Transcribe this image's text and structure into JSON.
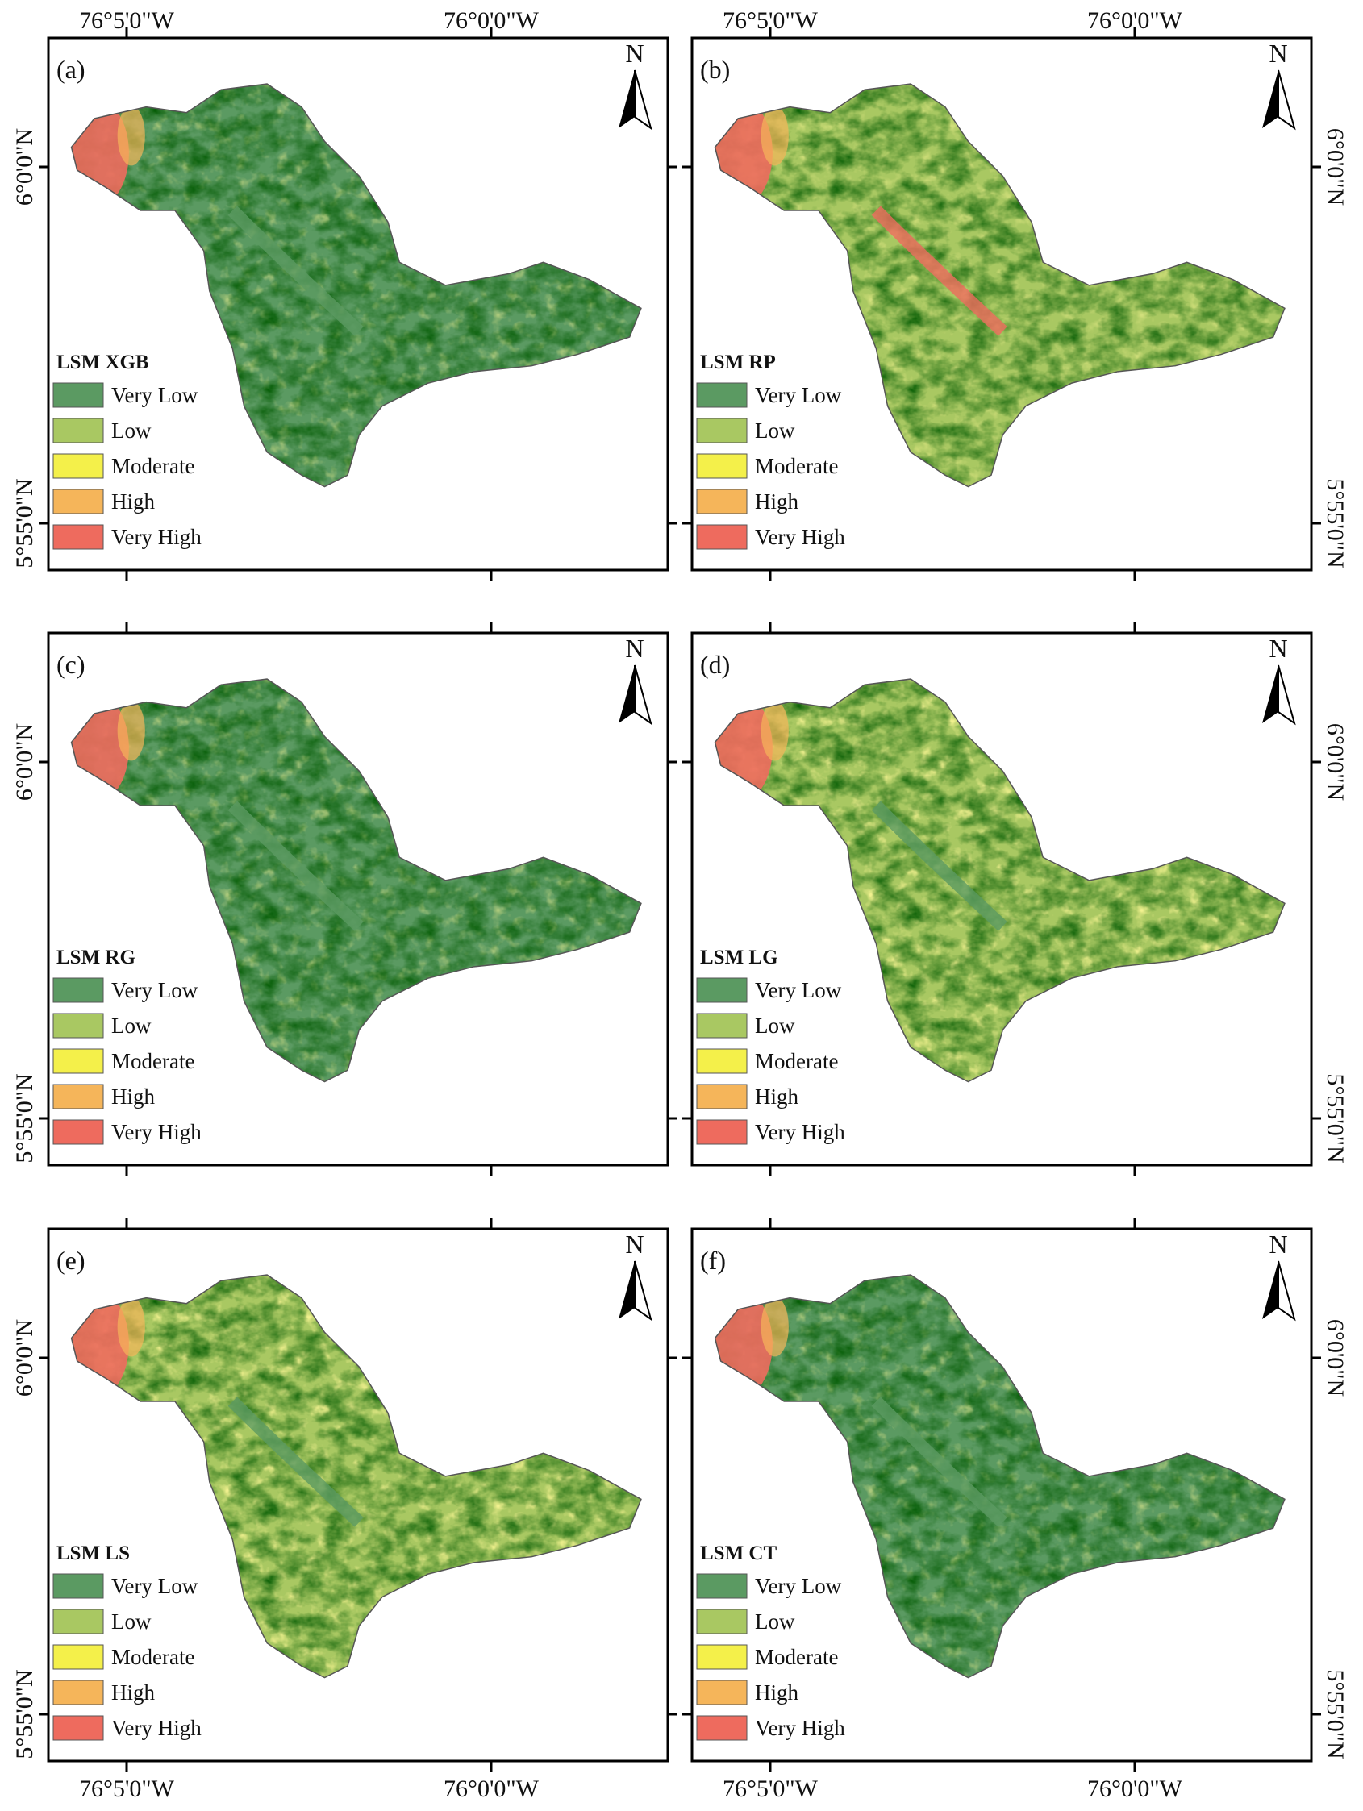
{
  "coordinates": {
    "lon": [
      "76°5'0\"W",
      "76°0'0\"W"
    ],
    "lat": [
      "6°0'0\"N",
      "5°55'0\"N"
    ]
  },
  "north": "N",
  "classes": [
    {
      "name": "Very Low",
      "color": "#5b9a62"
    },
    {
      "name": "Low",
      "color": "#a9c862"
    },
    {
      "name": "Moderate",
      "color": "#f4f04a"
    },
    {
      "name": "High",
      "color": "#f5b55a"
    },
    {
      "name": "Very High",
      "color": "#ee6b5e"
    }
  ],
  "panels": [
    {
      "label": "(a)",
      "title": "LSM XGB"
    },
    {
      "label": "(b)",
      "title": "LSM RP"
    },
    {
      "label": "(c)",
      "title": "LSM RG"
    },
    {
      "label": "(d)",
      "title": "LSM LG"
    },
    {
      "label": "(e)",
      "title": "LSM LS"
    },
    {
      "label": "(f)",
      "title": "LSM CT"
    }
  ]
}
